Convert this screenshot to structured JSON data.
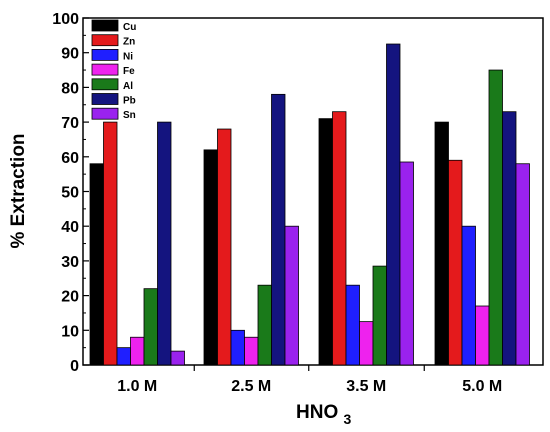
{
  "chart_data": {
    "type": "bar",
    "xlabel": "HNO",
    "xlabel_subscript": "3",
    "ylabel": "% Extraction",
    "ylim": [
      0,
      100
    ],
    "yticks": [
      0,
      10,
      20,
      30,
      40,
      50,
      60,
      70,
      80,
      90,
      100
    ],
    "categories": [
      "1.0 M",
      "2.5 M",
      "3.5 M",
      "5.0 M"
    ],
    "legend_position": "top-left",
    "grid": false,
    "series": [
      {
        "name": "Cu",
        "color": "#000000",
        "values": [
          58,
          62,
          71,
          70
        ]
      },
      {
        "name": "Zn",
        "color": "#e41a1c",
        "values": [
          70,
          68,
          73,
          59
        ]
      },
      {
        "name": "Ni",
        "color": "#1f1fff",
        "values": [
          5,
          10,
          23,
          40
        ]
      },
      {
        "name": "Fe",
        "color": "#ee22ee",
        "values": [
          8,
          8,
          12.5,
          17
        ]
      },
      {
        "name": "Al",
        "color": "#1a7a1a",
        "values": [
          22,
          23,
          28.5,
          85
        ]
      },
      {
        "name": "Pb",
        "color": "#14147f",
        "values": [
          70,
          78,
          92.5,
          73
        ]
      },
      {
        "name": "Sn",
        "color": "#9a22ee",
        "values": [
          4,
          40,
          58.5,
          58
        ]
      }
    ]
  }
}
